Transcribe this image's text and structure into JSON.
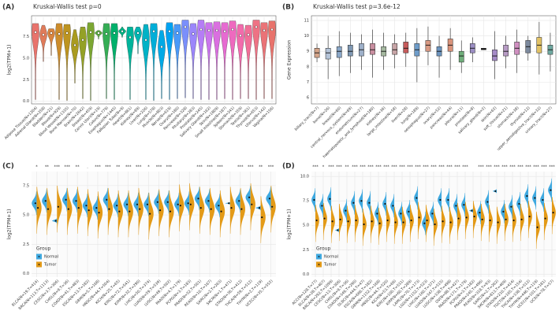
{
  "chart_data": [
    {
      "type": "violin",
      "panel_label": "(A)",
      "title": "Kruskal-Wallis test p=0",
      "ylabel": "log2(TPM+1)",
      "categories": [
        "Adipose Tissue(N=1204)",
        "Adrenal Gland(N=258)",
        "Bladder(N=21)",
        "Blood(N=929)",
        "Blood Vessel(N=1335)",
        "Bone Marrow(N=70)",
        "Brain(N=2642)",
        "Breast(N=459)",
        "Cervix Uteri(N=19)",
        "Colon(N=779)",
        "Esophagus(N=1445)",
        "Fallopian Tube(N=9)",
        "Heart(N=861)",
        "Kidney(N=89)",
        "Liver(N=226)",
        "Lung(N=578)",
        "Muscle(N=803)",
        "Nerve(N=619)",
        "Ovary(N=180)",
        "Pancreas(N=328)",
        "Pituitary(N=283)",
        "Prostate(N=245)",
        "Salivary Gland(N=162)",
        "Skin(N=1809)",
        "Small Intestine(N=187)",
        "Spleen(N=241)",
        "Stomach(N=359)",
        "Testis(N=361)",
        "Thyroid(N=653)",
        "Uterus(N=142)",
        "Vagina(N=156)"
      ],
      "values": [
        8.0,
        7.7,
        7.9,
        7.8,
        7.9,
        6.5,
        7.1,
        8.0,
        7.9,
        7.8,
        7.9,
        8.1,
        7.4,
        7.9,
        7.1,
        8.1,
        6.3,
        8.1,
        7.9,
        8.6,
        7.8,
        8.3,
        8.2,
        8.2,
        8.1,
        8.3,
        7.6,
        7.7,
        8.6,
        8.2,
        8.3
      ],
      "mins": [
        0.2,
        4.6,
        5.3,
        0.2,
        0.1,
        2.1,
        0.3,
        0.1,
        7.2,
        0.3,
        0.2,
        7.4,
        0.2,
        5.5,
        0.2,
        0.1,
        0.3,
        0.2,
        0.3,
        0.4,
        0.3,
        0.2,
        0.2,
        0.2,
        0.3,
        0.2,
        0.3,
        0.3,
        0.2,
        0.3,
        0.3
      ],
      "maxs": [
        9.0,
        8.8,
        8.4,
        9.0,
        8.9,
        8.3,
        8.6,
        9.1,
        8.2,
        9.0,
        9.0,
        8.6,
        8.6,
        8.6,
        8.9,
        9.0,
        8.2,
        9.1,
        8.9,
        9.4,
        9.0,
        9.4,
        9.1,
        9.2,
        9.1,
        9.3,
        8.9,
        8.8,
        9.4,
        9.1,
        9.3
      ],
      "colors": [
        "#e8736c",
        "#e07b5a",
        "#d8843f",
        "#cc8c2b",
        "#bd9420",
        "#aa9b1f",
        "#94a126",
        "#7ba632",
        "#5caa41",
        "#35ad55",
        "#00b06b",
        "#00b283",
        "#00b49b",
        "#00b4b1",
        "#00b2c6",
        "#00aed8",
        "#00a9e6",
        "#00a2f1",
        "#4a99f8",
        "#7a8ffb",
        "#9b86fb",
        "#b57df6",
        "#ca75ec",
        "#da6fe0",
        "#e66bd1",
        "#ee6abf",
        "#f26bac",
        "#f16e98",
        "#ee7284",
        "#ea7377",
        "#e8736c"
      ],
      "ylim": [
        -0.3,
        9.9
      ],
      "yticks": [
        {
          "value": 0,
          "label": "0.0"
        },
        {
          "value": 2.5,
          "label": "2.5"
        },
        {
          "value": 5,
          "label": "5.0"
        },
        {
          "value": 7.5,
          "label": "7.5"
        }
      ],
      "grid": true
    },
    {
      "type": "box",
      "panel_label": "(B)",
      "title": "Kruskal-Wallis test p=3.6e-12",
      "ylabel": "Gene Expression",
      "categories": [
        "biliary_tract(N=7)",
        "bone(N=26)",
        "breast(N=60)",
        "central_nervous_system(N=69)",
        "endometrium(N=27)",
        "haematopoietic_and_lymphoid(N=180)",
        "kidney(N=36)",
        "large_intestine(N=58)",
        "liver(N=28)",
        "lung(N=189)",
        "oesophagus(N=27)",
        "ovary(N=52)",
        "pancreas(N=44)",
        "pleura(N=11)",
        "prostate(N=8)",
        "salivary_gland(N=2)",
        "skin(N=62)",
        "soft_tissue(N=21)",
        "stomach(N=38)",
        "thyroid(N=12)",
        "upper_aerodigestive_tract(N=32)",
        "urinary_tract(N=27)"
      ],
      "values": [
        8.9,
        8.9,
        9.0,
        9.0,
        9.1,
        9.1,
        9.0,
        9.1,
        9.2,
        9.1,
        9.4,
        9.0,
        9.4,
        8.7,
        9.2,
        9.15,
        8.7,
        9.0,
        9.2,
        9.3,
        9.4,
        9.1
      ],
      "q1": [
        8.6,
        8.5,
        8.6,
        8.7,
        8.7,
        8.8,
        8.7,
        8.8,
        8.9,
        8.7,
        9.0,
        8.7,
        9.0,
        8.3,
        8.9,
        9.1,
        8.4,
        8.7,
        8.8,
        8.9,
        8.9,
        8.8
      ],
      "q3": [
        9.2,
        9.2,
        9.3,
        9.4,
        9.5,
        9.5,
        9.3,
        9.5,
        9.6,
        9.5,
        9.7,
        9.3,
        9.8,
        9.0,
        9.5,
        9.2,
        9.1,
        9.4,
        9.6,
        9.7,
        9.9,
        9.4
      ],
      "mins": [
        8.3,
        7.2,
        7.4,
        7.6,
        7.8,
        7.3,
        7.8,
        7.9,
        8.0,
        7.0,
        8.1,
        7.3,
        7.8,
        7.6,
        8.3,
        9.1,
        7.2,
        7.9,
        7.6,
        8.4,
        7.5,
        7.7
      ],
      "maxs": [
        9.5,
        10.0,
        10.3,
        10.2,
        10.1,
        10.4,
        10.2,
        10.1,
        10.2,
        10.5,
        10.6,
        10.0,
        10.5,
        9.7,
        9.9,
        9.2,
        10.3,
        10.0,
        10.4,
        10.0,
        10.9,
        10.2
      ],
      "colors": [
        "#d4a58a",
        "#b5c4d8",
        "#8aa7c8",
        "#7f98b3",
        "#9eb0c9",
        "#c98fa0",
        "#a5b9a0",
        "#c7a4a6",
        "#c75b5b",
        "#6e9cc9",
        "#d99a84",
        "#6d95bf",
        "#d8927a",
        "#6fae7b",
        "#9c8fc4",
        "#333333",
        "#a58bc7",
        "#b79bc4",
        "#cf8fc0",
        "#7d8a9e",
        "#e2c266",
        "#6ea8a0"
      ],
      "ylim": [
        5.6,
        11.3
      ],
      "yticks": [
        6,
        7,
        8,
        9,
        10,
        11
      ],
      "grid": true
    },
    {
      "type": "split_violin",
      "panel_label": "(C)",
      "ylabel": "log2(TPM+1)",
      "legend_title": "Group",
      "legend": "bottom-left",
      "categories": [
        "BLCA(N=19,T=414)",
        "BRCA(N=113,T=1113)",
        "CESC(N=3,T=306)",
        "CHOL(N=9,T=36)",
        "COAD(N=41,T=483)",
        "ESCA(N=13,T=182)",
        "GBM(N=5,T=168)",
        "HNSC(N=44,T=504)",
        "KICH(N=25,T=65)",
        "KIRC(N=72,T=541)",
        "KIRP(N=32,T=290)",
        "LIHC(N=50,T=374)",
        "LUAD(N=59,T=539)",
        "LUSC(N=49,T=502)",
        "PAAD(N=4,T=179)",
        "PCPG(N=3,T=183)",
        "PRAD(N=52,T=501)",
        "READ(N=10,T=167)",
        "SARC(N=2,T=263)",
        "SKCM(N=1,T=471)",
        "STAD(N=36,T=412)",
        "THCA(N=59,T=512)",
        "THYM(N=2,T=119)",
        "UCEC(N=35,T=552)"
      ],
      "significance": [
        "*",
        "**",
        "***",
        "***",
        "**",
        ".",
        "***",
        "***",
        "**",
        "***",
        "***",
        "*",
        "***",
        "***",
        null,
        null,
        "***",
        "***",
        "***",
        null,
        "***",
        "***",
        "**",
        "***"
      ],
      "series": [
        {
          "name": "Normal",
          "color": "#3fa9e0",
          "values": [
            6.0,
            6.2,
            4.5,
            6.3,
            6.2,
            5.8,
            5.6,
            6.3,
            5.8,
            5.9,
            5.9,
            5.9,
            6.1,
            6.1,
            5.9,
            6.0,
            6.4,
            6.2,
            5.8,
            6.0,
            6.2,
            6.5,
            5.6,
            6.4
          ],
          "mins": [
            5.0,
            5.2,
            4.3,
            5.3,
            5.2,
            4.8,
            4.6,
            5.3,
            4.8,
            4.9,
            4.9,
            4.9,
            5.1,
            5.1,
            4.9,
            5.0,
            5.4,
            5.2,
            4.8,
            5.9,
            5.2,
            5.5,
            5.4,
            5.4
          ],
          "maxs": [
            7.0,
            7.2,
            4.7,
            7.3,
            7.2,
            6.8,
            6.6,
            7.3,
            6.8,
            6.9,
            6.9,
            6.9,
            7.1,
            7.1,
            6.9,
            7.0,
            7.4,
            7.2,
            6.8,
            6.1,
            7.2,
            7.5,
            5.8,
            7.4
          ]
        },
        {
          "name": "Tumor",
          "color": "#e39a17",
          "values": [
            5.6,
            5.5,
            5.7,
            5.5,
            5.6,
            5.4,
            5.2,
            5.5,
            5.3,
            5.3,
            5.5,
            5.1,
            5.4,
            5.3,
            5.8,
            5.9,
            5.6,
            5.5,
            5.3,
            5.6,
            5.5,
            5.9,
            4.8,
            5.7
          ],
          "mins": [
            3.4,
            3.3,
            3.5,
            3.3,
            3.4,
            3.2,
            3.0,
            3.3,
            3.1,
            3.1,
            3.3,
            2.9,
            3.2,
            3.1,
            3.6,
            3.7,
            3.4,
            3.3,
            3.1,
            3.4,
            3.3,
            3.7,
            2.6,
            3.5
          ],
          "maxs": [
            7.4,
            7.3,
            7.5,
            7.3,
            7.4,
            7.2,
            7.0,
            7.3,
            7.1,
            7.1,
            7.3,
            6.9,
            7.2,
            7.1,
            7.6,
            7.7,
            7.4,
            7.3,
            7.1,
            7.4,
            7.3,
            7.7,
            6.6,
            7.5
          ]
        }
      ],
      "ylim": [
        -0.3,
        8.7
      ],
      "yticks": [
        {
          "value": 0,
          "label": "0.0"
        },
        {
          "value": 2.5,
          "label": "2.5"
        },
        {
          "value": 5,
          "label": "5.0"
        },
        {
          "value": 7.5,
          "label": "7.5"
        }
      ],
      "grid": true
    },
    {
      "type": "split_violin",
      "panel_label": "(D)",
      "ylabel": "log2(TPM+1)",
      "legend_title": "Group",
      "legend": "bottom-left",
      "categories": [
        "ACC(N=128,T=77)",
        "BLCA(N=28,T=407)",
        "BRCA(N=292,T=1099)",
        "CESC(N=13,T=306)",
        "CHOL(N=9,T=36)",
        "COAD(N=349,T=290)",
        "DLBC(N=444,T=47)",
        "ESCA(N=666,T=182)",
        "GBM(N=1152,T=168)",
        "HNSC(N=44,T=520)",
        "KICH(N=53,T=66)",
        "KIRC(N=100,T=531)",
        "KIRP(N=60,T=289)",
        "LAML(N=70,T=173)",
        "LGG(N=1152,T=523)",
        "LIHC(N=160,T=371)",
        "LUAD(N=347,T=515)",
        "LUSC(N=338,T=498)",
        "OV(N=88,T=427)",
        "PAAD(N=171,T=179)",
        "PCPG(N=3,T=182)",
        "PRAD(N=245,T=496)",
        "READ(N=318,T=93)",
        "SARC(N=2,T=262)",
        "SKCM(N=813,T=469)",
        "STAD(N=210,T=414)",
        "TGCT(N=165,T=154)",
        "THCA(N=338,T=512)",
        "THYM(N=446,T=119)",
        "UCEC(N=101,T=181)",
        "UCS(N=78,T=57)"
      ],
      "significance": [
        "***",
        "*",
        "***",
        "***",
        "**",
        "***",
        "***",
        "***",
        "***",
        "***",
        "***",
        "***",
        "***",
        "***",
        "***",
        "***",
        "***",
        "***",
        "***",
        "***",
        null,
        "***",
        "***",
        "***",
        "***",
        "***",
        "***",
        "***",
        "***",
        "***",
        "***"
      ],
      "series": [
        {
          "name": "Normal",
          "color": "#3fa9e0",
          "values": [
            7.6,
            7.0,
            7.7,
            4.5,
            6.5,
            7.3,
            7.5,
            7.3,
            6.2,
            7.2,
            7.0,
            6.2,
            6.4,
            7.8,
            5.2,
            6.2,
            7.6,
            7.6,
            7.0,
            7.1,
            6.5,
            6.3,
            7.4,
            8.5,
            6.4,
            6.9,
            7.2,
            8.0,
            7.8,
            7.6,
            8.6
          ],
          "mins": [
            6.4,
            5.8,
            6.5,
            4.3,
            5.3,
            6.1,
            6.3,
            6.1,
            5.0,
            6.0,
            5.8,
            5.0,
            5.2,
            6.6,
            4.0,
            5.0,
            6.4,
            6.4,
            5.8,
            5.9,
            6.3,
            5.1,
            6.2,
            8.3,
            5.2,
            5.7,
            6.0,
            6.8,
            6.6,
            6.4,
            7.4
          ],
          "maxs": [
            8.8,
            8.2,
            8.9,
            4.7,
            7.7,
            8.5,
            8.7,
            8.5,
            7.4,
            8.4,
            8.2,
            7.4,
            7.6,
            9.0,
            6.4,
            7.4,
            8.8,
            8.8,
            8.2,
            8.3,
            6.7,
            7.5,
            8.6,
            8.7,
            7.6,
            8.1,
            8.4,
            9.2,
            9.0,
            8.8,
            9.8
          ]
        },
        {
          "name": "Tumor",
          "color": "#e39a17",
          "values": [
            5.5,
            5.7,
            5.4,
            5.6,
            5.4,
            5.5,
            5.1,
            5.4,
            5.2,
            5.5,
            5.3,
            5.3,
            5.5,
            5.8,
            5.5,
            5.1,
            5.4,
            5.3,
            5.7,
            5.8,
            5.9,
            5.6,
            5.5,
            5.3,
            5.6,
            5.5,
            5.6,
            5.9,
            4.8,
            5.7,
            6.3
          ],
          "mins": [
            3.3,
            3.5,
            3.2,
            3.4,
            3.2,
            3.3,
            2.9,
            3.2,
            3.0,
            3.3,
            3.1,
            3.1,
            3.3,
            3.6,
            3.3,
            2.9,
            3.2,
            3.1,
            3.5,
            3.6,
            3.7,
            3.4,
            3.3,
            3.1,
            3.4,
            3.3,
            3.4,
            3.7,
            2.6,
            3.5,
            4.1
          ],
          "maxs": [
            7.1,
            7.3,
            7.0,
            7.2,
            7.0,
            7.1,
            6.7,
            7.0,
            6.8,
            7.1,
            6.9,
            6.9,
            7.1,
            7.4,
            7.1,
            6.7,
            7.0,
            6.9,
            7.3,
            7.4,
            7.5,
            7.2,
            7.1,
            6.9,
            7.2,
            7.1,
            7.2,
            7.5,
            6.4,
            7.3,
            7.9
          ]
        }
      ],
      "ylim": [
        -0.3,
        10.5
      ],
      "yticks": [
        {
          "value": 0,
          "label": "0.0"
        },
        {
          "value": 2.5,
          "label": "2.5"
        },
        {
          "value": 5,
          "label": "5.0"
        },
        {
          "value": 7.5,
          "label": "7.5"
        },
        {
          "value": 10,
          "label": "10.0"
        }
      ],
      "grid": true
    }
  ]
}
